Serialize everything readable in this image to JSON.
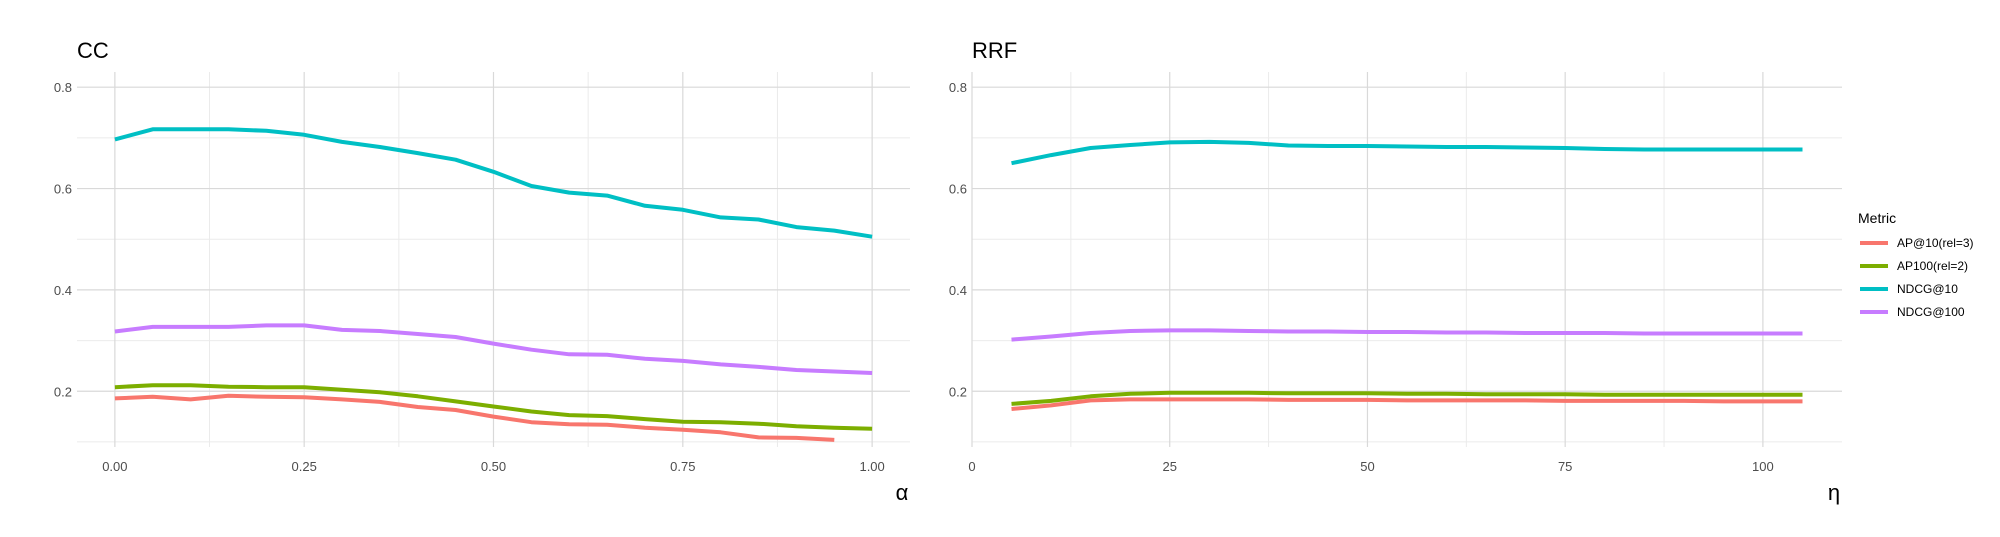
{
  "legend": {
    "title": "Metric",
    "position": "right",
    "entries": [
      {
        "label": "AP@10(rel=3)",
        "color": "#F8766D"
      },
      {
        "label": "AP100(rel=2)",
        "color": "#7CAE00"
      },
      {
        "label": "NDCG@10",
        "color": "#00BFC4"
      },
      {
        "label": "NDCG@100",
        "color": "#C77CFF"
      }
    ]
  },
  "chart_data": [
    {
      "type": "line",
      "title": "CC",
      "xlabel": "α",
      "ylabel": "",
      "xlim": [
        -0.05,
        1.05
      ],
      "ylim": [
        0.09,
        0.83
      ],
      "xticks": [
        0,
        0.25,
        0.5,
        0.75,
        1.0
      ],
      "xtick_labels": [
        "0.00",
        "0.25",
        "0.50",
        "0.75",
        "1.00"
      ],
      "yticks": [
        0.2,
        0.4,
        0.6,
        0.8
      ],
      "ytick_labels": [
        "0.2",
        "0.4",
        "0.6",
        "0.8"
      ],
      "grid": true,
      "series": [
        {
          "name": "AP@10(rel=3)",
          "x": [
            0,
            0.05,
            0.1,
            0.15,
            0.2,
            0.25,
            0.3,
            0.35,
            0.4,
            0.45,
            0.5,
            0.55,
            0.6,
            0.65,
            0.7,
            0.75,
            0.8,
            0.85,
            0.9,
            0.95
          ],
          "values": [
            0.186,
            0.189,
            0.184,
            0.191,
            0.189,
            0.188,
            0.184,
            0.179,
            0.169,
            0.163,
            0.15,
            0.139,
            0.135,
            0.134,
            0.128,
            0.124,
            0.119,
            0.109,
            0.108,
            0.104
          ]
        },
        {
          "name": "AP100(rel=2)",
          "x": [
            0,
            0.05,
            0.1,
            0.15,
            0.2,
            0.25,
            0.3,
            0.35,
            0.4,
            0.45,
            0.5,
            0.55,
            0.6,
            0.65,
            0.7,
            0.75,
            0.8,
            0.85,
            0.9,
            0.95,
            1.0
          ],
          "values": [
            0.208,
            0.212,
            0.212,
            0.209,
            0.208,
            0.208,
            0.203,
            0.198,
            0.19,
            0.18,
            0.17,
            0.16,
            0.153,
            0.151,
            0.145,
            0.14,
            0.139,
            0.136,
            0.131,
            0.128,
            0.126
          ]
        },
        {
          "name": "NDCG@10",
          "x": [
            0,
            0.05,
            0.1,
            0.15,
            0.2,
            0.25,
            0.3,
            0.35,
            0.4,
            0.45,
            0.5,
            0.55,
            0.6,
            0.65,
            0.7,
            0.75,
            0.8,
            0.85,
            0.9,
            0.95,
            1.0
          ],
          "values": [
            0.697,
            0.717,
            0.717,
            0.717,
            0.714,
            0.706,
            0.692,
            0.682,
            0.67,
            0.657,
            0.633,
            0.605,
            0.592,
            0.586,
            0.566,
            0.558,
            0.543,
            0.539,
            0.524,
            0.517,
            0.505
          ]
        },
        {
          "name": "NDCG@100",
          "x": [
            0,
            0.05,
            0.1,
            0.15,
            0.2,
            0.25,
            0.3,
            0.35,
            0.4,
            0.45,
            0.5,
            0.55,
            0.6,
            0.65,
            0.7,
            0.75,
            0.8,
            0.85,
            0.9,
            0.95,
            1.0
          ],
          "values": [
            0.318,
            0.327,
            0.327,
            0.327,
            0.33,
            0.33,
            0.321,
            0.319,
            0.313,
            0.307,
            0.294,
            0.282,
            0.273,
            0.272,
            0.264,
            0.26,
            0.253,
            0.248,
            0.242,
            0.239,
            0.236
          ]
        }
      ]
    },
    {
      "type": "line",
      "title": "RRF",
      "xlabel": "η",
      "ylabel": "",
      "xlim": [
        0,
        110
      ],
      "ylim": [
        0.09,
        0.83
      ],
      "xticks": [
        0,
        25,
        50,
        75,
        100
      ],
      "xtick_labels": [
        "0",
        "25",
        "50",
        "75",
        "100"
      ],
      "yticks": [
        0.2,
        0.4,
        0.6,
        0.8
      ],
      "ytick_labels": [
        "0.2",
        "0.4",
        "0.6",
        "0.8"
      ],
      "grid": true,
      "series": [
        {
          "name": "AP@10(rel=3)",
          "x": [
            5,
            10,
            15,
            20,
            25,
            30,
            35,
            40,
            45,
            50,
            55,
            60,
            65,
            70,
            75,
            80,
            85,
            90,
            95,
            100,
            105
          ],
          "values": [
            0.165,
            0.172,
            0.182,
            0.184,
            0.184,
            0.184,
            0.184,
            0.183,
            0.183,
            0.183,
            0.182,
            0.182,
            0.182,
            0.182,
            0.181,
            0.181,
            0.181,
            0.181,
            0.18,
            0.18,
            0.18
          ]
        },
        {
          "name": "AP100(rel=2)",
          "x": [
            5,
            10,
            15,
            20,
            25,
            30,
            35,
            40,
            45,
            50,
            55,
            60,
            65,
            70,
            75,
            80,
            85,
            90,
            95,
            100,
            105
          ],
          "values": [
            0.175,
            0.181,
            0.19,
            0.195,
            0.197,
            0.197,
            0.197,
            0.196,
            0.196,
            0.196,
            0.195,
            0.195,
            0.194,
            0.194,
            0.194,
            0.193,
            0.193,
            0.193,
            0.193,
            0.193,
            0.193
          ]
        },
        {
          "name": "NDCG@10",
          "x": [
            5,
            10,
            15,
            20,
            25,
            30,
            35,
            40,
            45,
            50,
            55,
            60,
            65,
            70,
            75,
            80,
            85,
            90,
            95,
            100,
            105
          ],
          "values": [
            0.65,
            0.666,
            0.68,
            0.686,
            0.691,
            0.692,
            0.69,
            0.685,
            0.684,
            0.684,
            0.683,
            0.682,
            0.682,
            0.681,
            0.68,
            0.678,
            0.677,
            0.677,
            0.677,
            0.677,
            0.677
          ]
        },
        {
          "name": "NDCG@100",
          "x": [
            5,
            10,
            15,
            20,
            25,
            30,
            35,
            40,
            45,
            50,
            55,
            60,
            65,
            70,
            75,
            80,
            85,
            90,
            95,
            100,
            105
          ],
          "values": [
            0.302,
            0.308,
            0.315,
            0.319,
            0.32,
            0.32,
            0.319,
            0.318,
            0.318,
            0.317,
            0.317,
            0.316,
            0.316,
            0.315,
            0.315,
            0.315,
            0.314,
            0.314,
            0.314,
            0.314,
            0.314
          ]
        }
      ]
    }
  ]
}
